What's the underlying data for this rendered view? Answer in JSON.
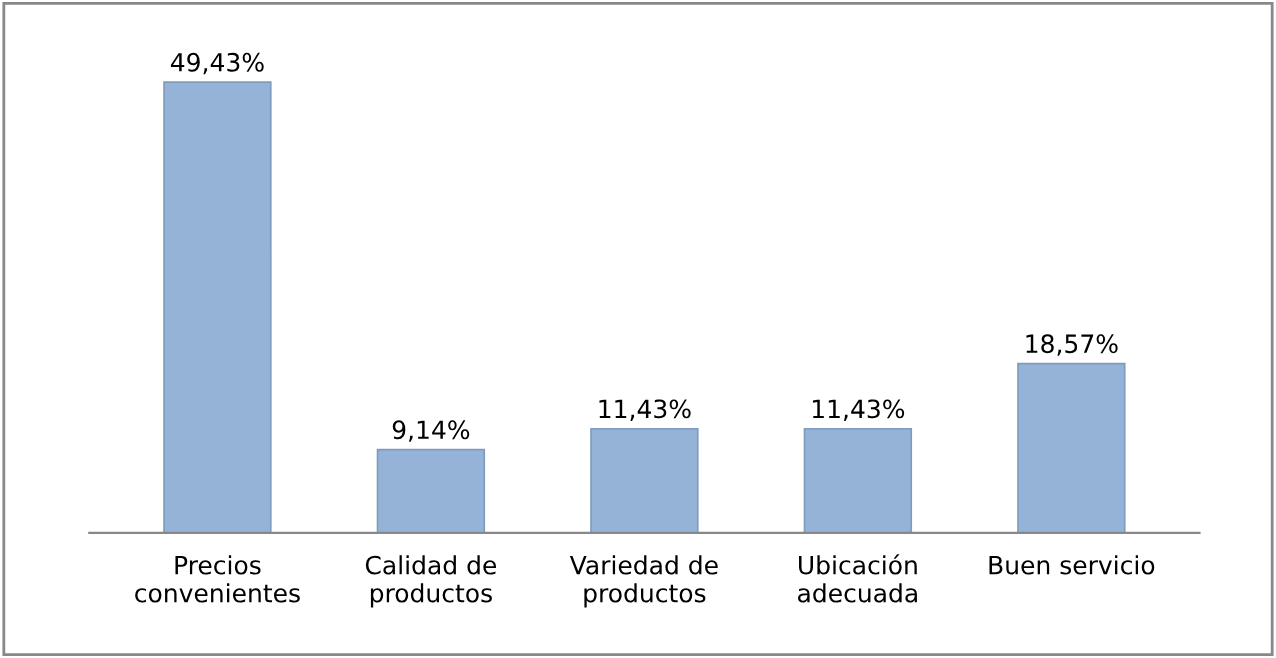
{
  "chart_data": {
    "type": "bar",
    "categories": [
      "Precios\nconvenientes",
      "Calidad de\nproductos",
      "Variedad de\nproductos",
      "Ubicación\nadecuada",
      "Buen servicio"
    ],
    "values": [
      49.43,
      9.14,
      11.43,
      11.43,
      18.57
    ],
    "value_labels": [
      "49,43%",
      "9,14%",
      "11,43%",
      "11,43%",
      "18,57%"
    ],
    "color": "#95b3d7",
    "tick_labels": "x",
    "grid": false,
    "legend": false
  }
}
